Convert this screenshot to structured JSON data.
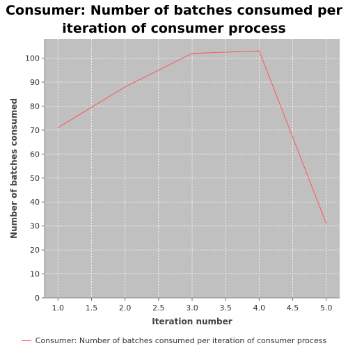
{
  "chart_data": {
    "type": "line",
    "title": "Consumer: Number of batches consumed per iteration of consumer process",
    "xlabel": "Iteration number",
    "ylabel": "Number of batches consumed",
    "xlim": [
      0.8,
      5.2
    ],
    "ylim": [
      0,
      108
    ],
    "x_ticks": [
      "1.0",
      "1.5",
      "2.0",
      "2.5",
      "3.0",
      "3.5",
      "4.0",
      "4.5",
      "5.0"
    ],
    "y_ticks": [
      "0",
      "10",
      "20",
      "30",
      "40",
      "50",
      "60",
      "70",
      "80",
      "90",
      "100"
    ],
    "x_tick_values": [
      1.0,
      1.5,
      2.0,
      2.5,
      3.0,
      3.5,
      4.0,
      4.5,
      5.0
    ],
    "y_tick_values": [
      0,
      10,
      20,
      30,
      40,
      50,
      60,
      70,
      80,
      90,
      100
    ],
    "grid": true,
    "legend_position": "bottom",
    "plot_background": "#c0c0c0",
    "series": [
      {
        "name": "Consumer: Number of batches consumed per iteration of consumer process",
        "color": "#ff5555",
        "x": [
          1,
          2,
          3,
          4,
          5
        ],
        "y": [
          71,
          88,
          102,
          103,
          31
        ]
      }
    ]
  }
}
